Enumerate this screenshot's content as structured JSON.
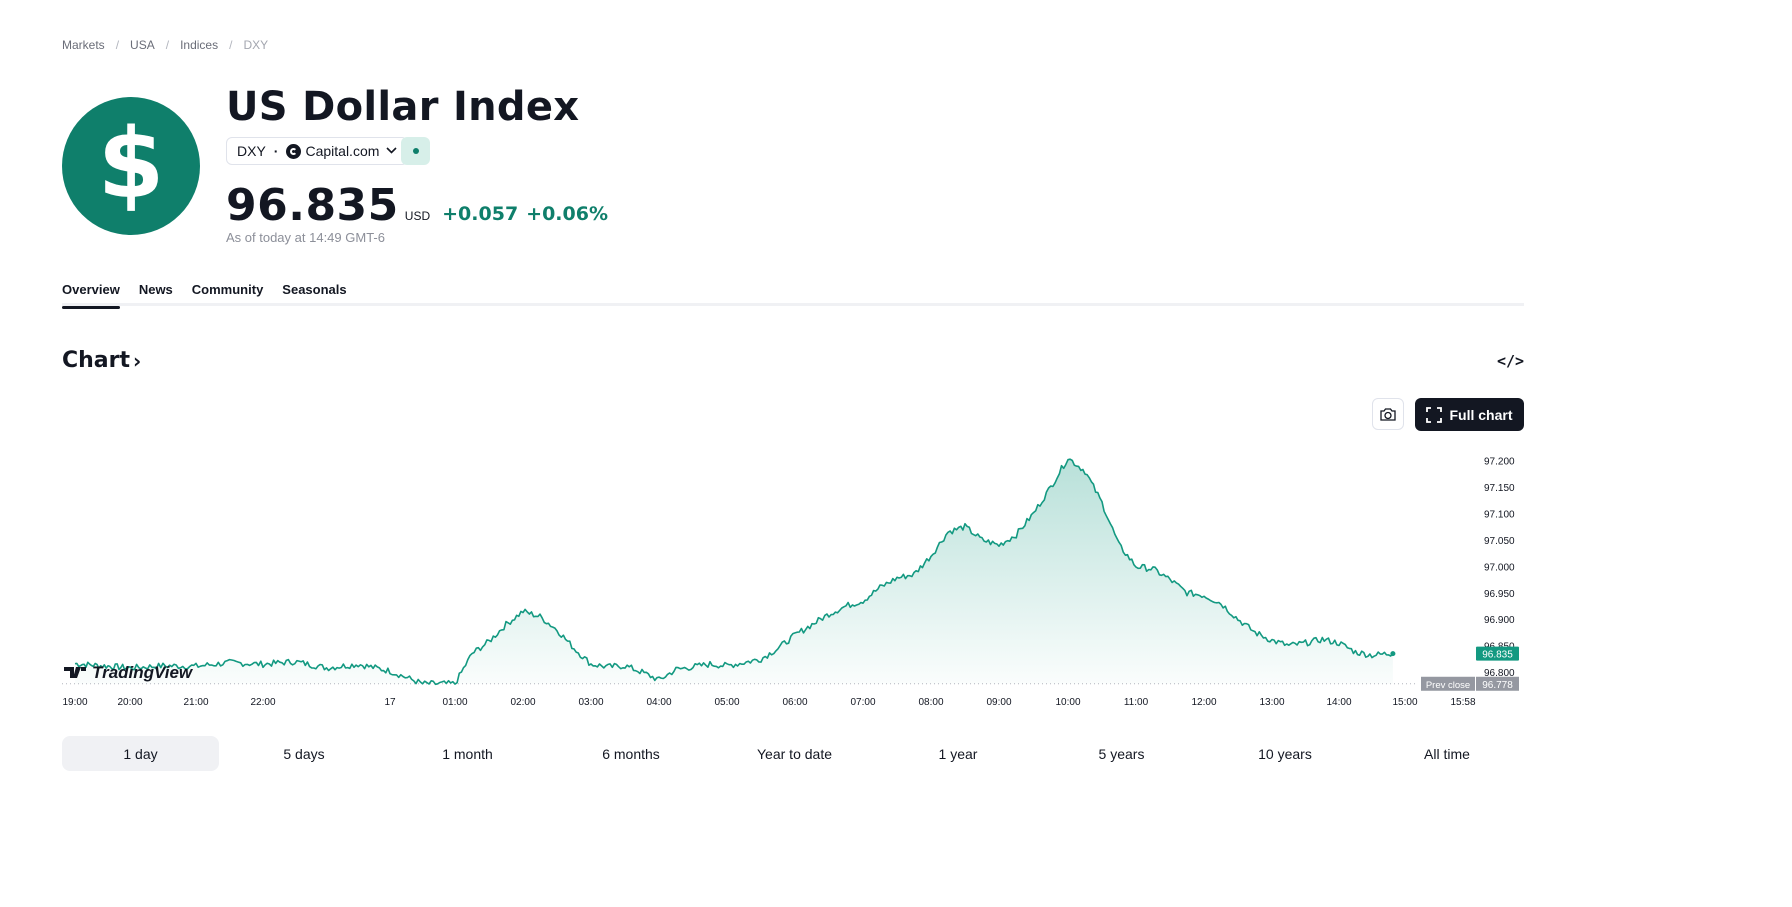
{
  "breadcrumb": [
    "Markets",
    "USA",
    "Indices",
    "DXY"
  ],
  "symbol": {
    "logo_glyph": "$",
    "name": "US Dollar Index",
    "ticker": "DXY",
    "source": "Capital.com",
    "price": "96.835",
    "currency": "USD",
    "change": "+0.057",
    "change_pct": "+0.06%",
    "as_of": "As of today at 14:49 GMT-6",
    "accent_color": "#0f7f6b"
  },
  "tabs": [
    "Overview",
    "News",
    "Community",
    "Seasonals"
  ],
  "chart_section": {
    "heading": "Chart",
    "heading_arrow": "›",
    "embed_icon": "</>",
    "snapshot_icon": "camera-icon",
    "full_chart_label": "Full chart",
    "watermark": "TradingView"
  },
  "chart_data": {
    "type": "area",
    "x_ticks": [
      "19:00",
      "20:00",
      "21:00",
      "22:00",
      "17",
      "01:00",
      "02:00",
      "03:00",
      "04:00",
      "05:00",
      "06:00",
      "07:00",
      "08:00",
      "09:00",
      "10:00",
      "11:00",
      "12:00",
      "13:00",
      "14:00",
      "15:00",
      "15:58"
    ],
    "y_ticks": [
      "97.200",
      "97.150",
      "97.100",
      "97.050",
      "97.000",
      "96.950",
      "96.900",
      "96.850",
      "96.800"
    ],
    "ylim": [
      96.77,
      97.22
    ],
    "last_price_label": "96.835",
    "prev_close_label": "Prev close",
    "prev_close_value": "96.778",
    "prev_close": 96.778,
    "line_color": "#139981",
    "points": [
      [
        "19:00",
        96.816
      ],
      [
        "19:30",
        96.812
      ],
      [
        "20:00",
        96.808
      ],
      [
        "20:30",
        96.812
      ],
      [
        "21:00",
        96.811
      ],
      [
        "21:30",
        96.818
      ],
      [
        "22:00",
        96.815
      ],
      [
        "22:30",
        96.82
      ],
      [
        "23:00",
        96.808
      ],
      [
        "23:30",
        96.815
      ],
      [
        "00:00",
        96.802
      ],
      [
        "00:30",
        96.778
      ],
      [
        "01:00",
        96.778
      ],
      [
        "01:15",
        96.835
      ],
      [
        "01:30",
        96.858
      ],
      [
        "01:45",
        96.89
      ],
      [
        "02:00",
        96.915
      ],
      [
        "02:15",
        96.905
      ],
      [
        "02:30",
        96.88
      ],
      [
        "02:45",
        96.845
      ],
      [
        "03:00",
        96.815
      ],
      [
        "03:15",
        96.81
      ],
      [
        "03:30",
        96.812
      ],
      [
        "03:45",
        96.8
      ],
      [
        "04:00",
        96.785
      ],
      [
        "04:15",
        96.805
      ],
      [
        "04:30",
        96.81
      ],
      [
        "04:45",
        96.815
      ],
      [
        "05:00",
        96.812
      ],
      [
        "05:15",
        96.818
      ],
      [
        "05:30",
        96.825
      ],
      [
        "05:45",
        96.845
      ],
      [
        "06:00",
        96.87
      ],
      [
        "06:15",
        96.89
      ],
      [
        "06:30",
        96.91
      ],
      [
        "06:45",
        96.925
      ],
      [
        "07:00",
        96.935
      ],
      [
        "07:15",
        96.96
      ],
      [
        "07:30",
        96.978
      ],
      [
        "07:45",
        96.985
      ],
      [
        "08:00",
        97.02
      ],
      [
        "08:15",
        97.065
      ],
      [
        "08:30",
        97.075
      ],
      [
        "08:45",
        97.05
      ],
      [
        "09:00",
        97.04
      ],
      [
        "09:15",
        97.06
      ],
      [
        "09:30",
        97.1
      ],
      [
        "09:45",
        97.15
      ],
      [
        "10:00",
        97.205
      ],
      [
        "10:15",
        97.18
      ],
      [
        "10:30",
        97.12
      ],
      [
        "10:45",
        97.04
      ],
      [
        "11:00",
        97.0
      ],
      [
        "11:15",
        96.995
      ],
      [
        "11:30",
        96.975
      ],
      [
        "11:45",
        96.95
      ],
      [
        "12:00",
        96.945
      ],
      [
        "12:15",
        96.93
      ],
      [
        "12:30",
        96.9
      ],
      [
        "12:45",
        96.875
      ],
      [
        "13:00",
        96.86
      ],
      [
        "13:15",
        96.85
      ],
      [
        "13:30",
        96.855
      ],
      [
        "13:45",
        96.862
      ],
      [
        "14:00",
        96.855
      ],
      [
        "14:15",
        96.838
      ],
      [
        "14:30",
        96.832
      ],
      [
        "14:45",
        96.835
      ],
      [
        "14:49",
        96.835
      ]
    ]
  },
  "ranges": {
    "items": [
      "1 day",
      "5 days",
      "1 month",
      "6 months",
      "Year to date",
      "1 year",
      "5 years",
      "10 years",
      "All time"
    ],
    "active": "1 day"
  }
}
